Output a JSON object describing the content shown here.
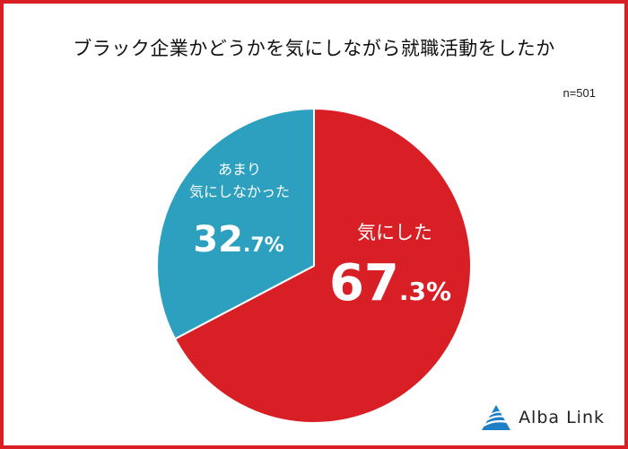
{
  "chart_data": {
    "type": "pie",
    "title": "ブラック企業かどうかを気にしながら就職活動をしたか",
    "sample_size": "n=501",
    "slices": [
      {
        "label": "気にした",
        "label_lines": [
          "気にした"
        ],
        "value": 67.3,
        "percent_major": "67",
        "percent_minor": ".3%",
        "color": "#d81f26"
      },
      {
        "label": "あまり気にしなかった",
        "label_lines": [
          "あまり",
          "気にしなかった"
        ],
        "value": 32.7,
        "percent_major": "32",
        "percent_minor": ".7%",
        "color": "#2d9fbf"
      }
    ]
  },
  "brand": {
    "name": "Alba Link"
  },
  "colors": {
    "frame": "#d81f26",
    "logo_blue": "#1f7fc6"
  }
}
